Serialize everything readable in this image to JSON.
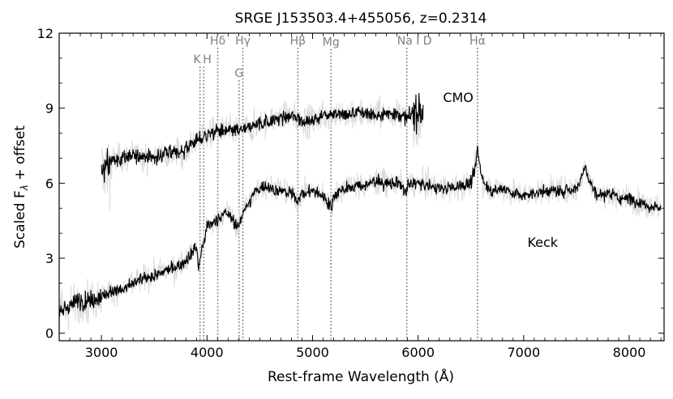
{
  "chart_data": {
    "type": "line",
    "title": "SRGE J153503.4+455056, z=0.2314",
    "xlabel": "Rest-frame Wavelength (Å)",
    "ylabel": "Scaled F_λ + offset",
    "ylabel_parts": {
      "main": "Scaled F",
      "sub": "λ",
      "tail": " + offset"
    },
    "xlim": [
      2600,
      8330
    ],
    "ylim": [
      -0.3,
      12
    ],
    "x_ticks": [
      3000,
      4000,
      5000,
      6000,
      7000,
      8000
    ],
    "y_ticks": [
      0,
      3,
      6,
      9,
      12
    ],
    "grid": false,
    "colors": {
      "smoothed": "#000000",
      "raw": "#d9d9d9",
      "lines": "#8c8c8c"
    },
    "series": [
      {
        "name": "CMO",
        "x": [
          3000,
          3050,
          3100,
          3200,
          3300,
          3400,
          3500,
          3600,
          3700,
          3800,
          3850,
          3900,
          3950,
          3980,
          4000,
          4050,
          4100,
          4200,
          4300,
          4400,
          4500,
          4600,
          4700,
          4800,
          4900,
          5000,
          5100,
          5200,
          5300,
          5400,
          5500,
          5600,
          5700,
          5800,
          5850,
          5900,
          5950,
          6000,
          6050
        ],
        "y": [
          6.5,
          6.6,
          6.9,
          7.0,
          7.1,
          7.1,
          7.0,
          7.2,
          7.2,
          7.3,
          7.6,
          7.7,
          7.8,
          7.9,
          7.9,
          8.0,
          8.1,
          8.1,
          8.1,
          8.2,
          8.4,
          8.5,
          8.6,
          8.7,
          8.5,
          8.5,
          8.7,
          8.8,
          8.7,
          8.8,
          8.8,
          8.7,
          8.8,
          8.8,
          8.7,
          8.6,
          8.8,
          8.8,
          8.8
        ]
      },
      {
        "name": "Keck",
        "x": [
          2600,
          2700,
          2800,
          2900,
          3000,
          3100,
          3200,
          3300,
          3400,
          3500,
          3600,
          3700,
          3800,
          3850,
          3900,
          3920,
          3950,
          3980,
          4000,
          4050,
          4100,
          4150,
          4200,
          4250,
          4300,
          4350,
          4400,
          4450,
          4500,
          4550,
          4600,
          4700,
          4800,
          4860,
          4900,
          5000,
          5100,
          5150,
          5180,
          5200,
          5300,
          5400,
          5500,
          5600,
          5700,
          5800,
          5850,
          5890,
          5900,
          5950,
          6000,
          6100,
          6200,
          6300,
          6400,
          6500,
          6540,
          6563,
          6580,
          6620,
          6700,
          6800,
          6900,
          7000,
          7100,
          7200,
          7300,
          7400,
          7500,
          7550,
          7580,
          7620,
          7700,
          7800,
          7900,
          8000,
          8100,
          8200,
          8300
        ],
        "y": [
          0.8,
          1.1,
          1.3,
          1.3,
          1.5,
          1.7,
          1.7,
          2.0,
          2.2,
          2.3,
          2.5,
          2.6,
          2.9,
          3.2,
          3.5,
          2.6,
          3.4,
          3.8,
          4.3,
          4.4,
          4.5,
          4.8,
          4.8,
          4.5,
          4.2,
          5.0,
          5.2,
          5.6,
          5.8,
          5.9,
          5.8,
          5.7,
          5.6,
          5.3,
          5.6,
          5.7,
          5.5,
          5.2,
          5.0,
          5.5,
          5.8,
          5.9,
          5.9,
          6.1,
          6.0,
          6.0,
          5.9,
          5.5,
          5.9,
          6.0,
          6.0,
          5.9,
          5.8,
          5.8,
          5.9,
          6.0,
          6.6,
          7.4,
          6.8,
          6.0,
          5.7,
          5.8,
          5.6,
          5.5,
          5.6,
          5.7,
          5.7,
          5.7,
          5.8,
          6.2,
          6.8,
          6.1,
          5.5,
          5.6,
          5.4,
          5.4,
          5.2,
          5.1,
          5.0
        ]
      }
    ],
    "series_labels": [
      {
        "text": "CMO",
        "x": 6380,
        "y": 9.25
      },
      {
        "text": "Keck",
        "x": 7180,
        "y": 3.45
      }
    ],
    "annotations": [
      {
        "label": "K",
        "x": 3934,
        "label_y": 10.8
      },
      {
        "label": "H",
        "x": 3969,
        "label_y": 10.8
      },
      {
        "label": "Hδ",
        "x": 4102,
        "label_y": 11.55
      },
      {
        "label": "G",
        "x": 4304,
        "label_y": 10.25
      },
      {
        "label": "Hγ",
        "x": 4340,
        "label_y": 11.55
      },
      {
        "label": "Hβ",
        "x": 4861,
        "label_y": 11.55
      },
      {
        "label": "Mg",
        "x": 5175,
        "label_y": 11.5
      },
      {
        "label": "Na I D",
        "x": 5893,
        "label_y": 11.55
      },
      {
        "label": "Hα",
        "x": 6563,
        "label_y": 11.55
      }
    ]
  }
}
